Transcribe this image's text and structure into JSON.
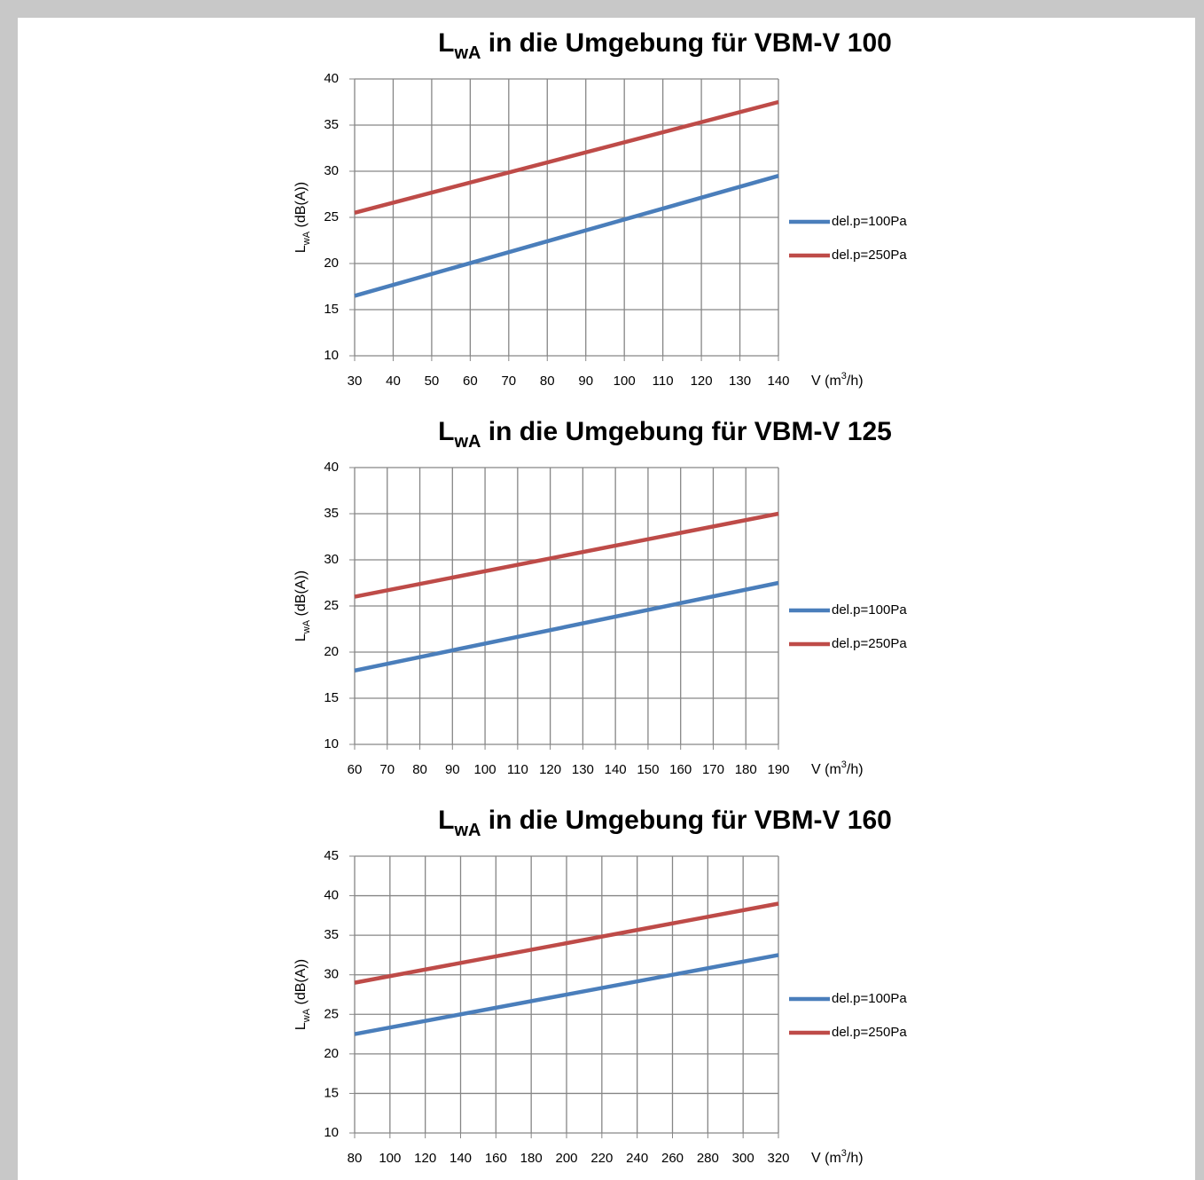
{
  "chart_data": [
    {
      "type": "line",
      "title": {
        "main": "L",
        "sub": "wA",
        "rest": " in die Umgebung für VBM-V 100"
      },
      "y_label": {
        "main": "L",
        "sub": "wA",
        "rest": " (dB(A))"
      },
      "x_label": {
        "main": "V (m",
        "sup": "3",
        "rest": "/h)"
      },
      "x": [
        30,
        140
      ],
      "series": [
        {
          "name": "del.p=100Pa",
          "color": "#4a7ebb",
          "values": [
            16.5,
            29.5
          ]
        },
        {
          "name": "del.p=250Pa",
          "color": "#be4b48",
          "values": [
            25.5,
            37.5
          ]
        }
      ],
      "xlim": [
        30,
        140
      ],
      "xticks": [
        30,
        40,
        50,
        60,
        70,
        80,
        90,
        100,
        110,
        120,
        130,
        140
      ],
      "ylim": [
        10,
        40
      ],
      "yticks": [
        10,
        15,
        20,
        25,
        30,
        35,
        40
      ],
      "grid": true,
      "legend": "right"
    },
    {
      "type": "line",
      "title": {
        "main": "L",
        "sub": "wA",
        "rest": " in die Umgebung für VBM-V 125"
      },
      "y_label": {
        "main": "L",
        "sub": "wA",
        "rest": " (dB(A))"
      },
      "x_label": {
        "main": "V (m",
        "sup": "3",
        "rest": "/h)"
      },
      "x": [
        60,
        190
      ],
      "series": [
        {
          "name": "del.p=100Pa",
          "color": "#4a7ebb",
          "values": [
            18,
            27.5
          ]
        },
        {
          "name": "del.p=250Pa",
          "color": "#be4b48",
          "values": [
            26,
            35
          ]
        }
      ],
      "xlim": [
        60,
        190
      ],
      "xticks": [
        60,
        70,
        80,
        90,
        100,
        110,
        120,
        130,
        140,
        150,
        160,
        170,
        180,
        190
      ],
      "ylim": [
        10,
        40
      ],
      "yticks": [
        10,
        15,
        20,
        25,
        30,
        35,
        40
      ],
      "grid": true,
      "legend": "right"
    },
    {
      "type": "line",
      "title": {
        "main": "L",
        "sub": "wA",
        "rest": " in die Umgebung für VBM-V 160"
      },
      "y_label": {
        "main": "L",
        "sub": "wA",
        "rest": " (dB(A))"
      },
      "x_label": {
        "main": "V (m",
        "sup": "3",
        "rest": "/h)"
      },
      "x": [
        80,
        320
      ],
      "series": [
        {
          "name": "del.p=100Pa",
          "color": "#4a7ebb",
          "values": [
            22.5,
            32.5
          ]
        },
        {
          "name": "del.p=250Pa",
          "color": "#be4b48",
          "values": [
            29,
            39
          ]
        }
      ],
      "xlim": [
        80,
        320
      ],
      "xticks": [
        80,
        100,
        120,
        140,
        160,
        180,
        200,
        220,
        240,
        260,
        280,
        300,
        320
      ],
      "ylim": [
        10,
        45
      ],
      "yticks": [
        10,
        15,
        20,
        25,
        30,
        35,
        40,
        45
      ],
      "grid": true,
      "legend": "right"
    }
  ]
}
